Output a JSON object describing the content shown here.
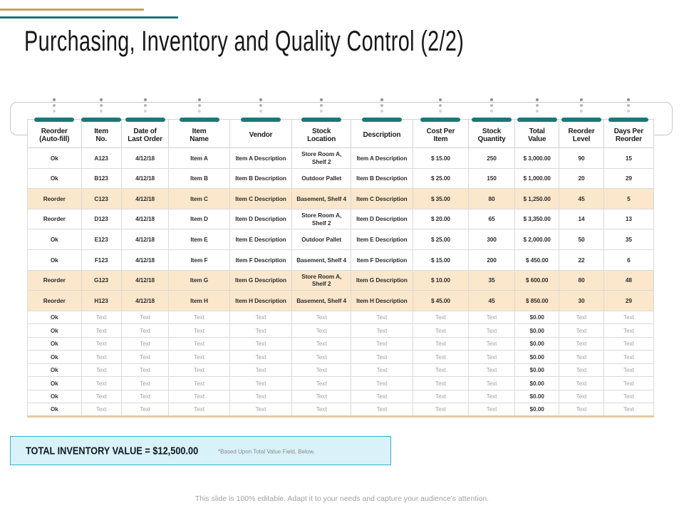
{
  "colors": {
    "teal": "#1b7877",
    "gold": "#c8a35e",
    "peach": "#fbe7cc",
    "tan": "#e7caa0",
    "cyanBg": "#d9f1f8",
    "cyanBorder": "#30b2d1"
  },
  "header": {
    "title": "Purchasing, Inventory and Quality Control (2/2)"
  },
  "table": {
    "columns": [
      {
        "key": "reorder-autofill",
        "lines": [
          "Reorder",
          "(Auto-fill)"
        ]
      },
      {
        "key": "item-no",
        "lines": [
          "Item",
          "No."
        ]
      },
      {
        "key": "date-of-last-order",
        "lines": [
          "Date of",
          "Last Order"
        ]
      },
      {
        "key": "item-name",
        "lines": [
          "Item",
          "Name"
        ]
      },
      {
        "key": "vendor",
        "lines": [
          "Vendor"
        ]
      },
      {
        "key": "stock-location",
        "lines": [
          "Stock",
          "Location"
        ]
      },
      {
        "key": "description",
        "lines": [
          "Description"
        ]
      },
      {
        "key": "cost-per-item",
        "lines": [
          "Cost Per",
          "Item"
        ]
      },
      {
        "key": "stock-quantity",
        "lines": [
          "Stock",
          "Quantity"
        ]
      },
      {
        "key": "total-value",
        "lines": [
          "Total",
          "Value"
        ]
      },
      {
        "key": "reorder-level",
        "lines": [
          "Reorder",
          "Level"
        ]
      },
      {
        "key": "days-per-reorder",
        "lines": [
          "Days Per",
          "Reorder"
        ]
      }
    ],
    "rows": [
      {
        "id": "A123",
        "highlight": false,
        "cells": [
          "Ok",
          "A123",
          "4/12/18",
          "Item A",
          "Item A Description",
          "Store Room A, Shelf 2",
          "Item A Description",
          "$ 15.00",
          "250",
          "$ 3,000.00",
          "90",
          "15"
        ]
      },
      {
        "id": "B123",
        "highlight": false,
        "cells": [
          "Ok",
          "B123",
          "4/12/18",
          "Item B",
          "Item B Description",
          "Outdoor Pallet",
          "Item B Description",
          "$ 25.00",
          "150",
          "$ 1,000.00",
          "20",
          "29"
        ]
      },
      {
        "id": "C123",
        "highlight": true,
        "cells": [
          "Reorder",
          "C123",
          "4/12/18",
          "Item C",
          "Item C Description",
          "Basement, Shelf 4",
          "Item C Description",
          "$ 35.00",
          "80",
          "$ 1,250.00",
          "45",
          "5"
        ]
      },
      {
        "id": "D123",
        "highlight": false,
        "cells": [
          "Reorder",
          "D123",
          "4/12/18",
          "Item D",
          "Item D Description",
          "Store Room A, Shelf 2",
          "Item D Description",
          "$ 20.00",
          "65",
          "$ 3,350.00",
          "14",
          "13"
        ]
      },
      {
        "id": "E123",
        "highlight": false,
        "cells": [
          "Ok",
          "E123",
          "4/12/18",
          "Item E",
          "Item E Description",
          "Outdoor Pallet",
          "Item E Description",
          "$ 25.00",
          "300",
          "$ 2,000.00",
          "50",
          "35"
        ]
      },
      {
        "id": "F123",
        "highlight": false,
        "cells": [
          "Ok",
          "F123",
          "4/12/18",
          "Item F",
          "Item F Description",
          "Basement, Shelf 4",
          "Item F Description",
          "$ 15.00",
          "200",
          "$ 450.00",
          "22",
          "6"
        ]
      },
      {
        "id": "G123",
        "highlight": true,
        "cells": [
          "Reorder",
          "G123",
          "4/12/18",
          "Item G",
          "Item G Description",
          "Store Room A, Shelf 2",
          "Item G Description",
          "$ 10.00",
          "35",
          "$ 600.00",
          "80",
          "48"
        ]
      },
      {
        "id": "H123",
        "highlight": true,
        "cells": [
          "Reorder",
          "H123",
          "4/12/18",
          "Item H",
          "Item H Description",
          "Basement, Shelf 4",
          "Item H Description",
          "$ 45.00",
          "45",
          "$ 850.00",
          "30",
          "29"
        ]
      }
    ],
    "filler_row": [
      "Ok",
      "Text",
      "Text",
      "Text",
      "Text",
      "Text",
      "Text",
      "Text",
      "Text",
      "$0.00",
      "Text",
      "Text"
    ],
    "filler_count": 8
  },
  "summary": {
    "label": "TOTAL INVENTORY VALUE = $12,500.00",
    "note": "*Based Upon Total Value Field, Below."
  },
  "footer": "This slide is 100% editable. Adapt it to your needs and capture your audience's attention."
}
